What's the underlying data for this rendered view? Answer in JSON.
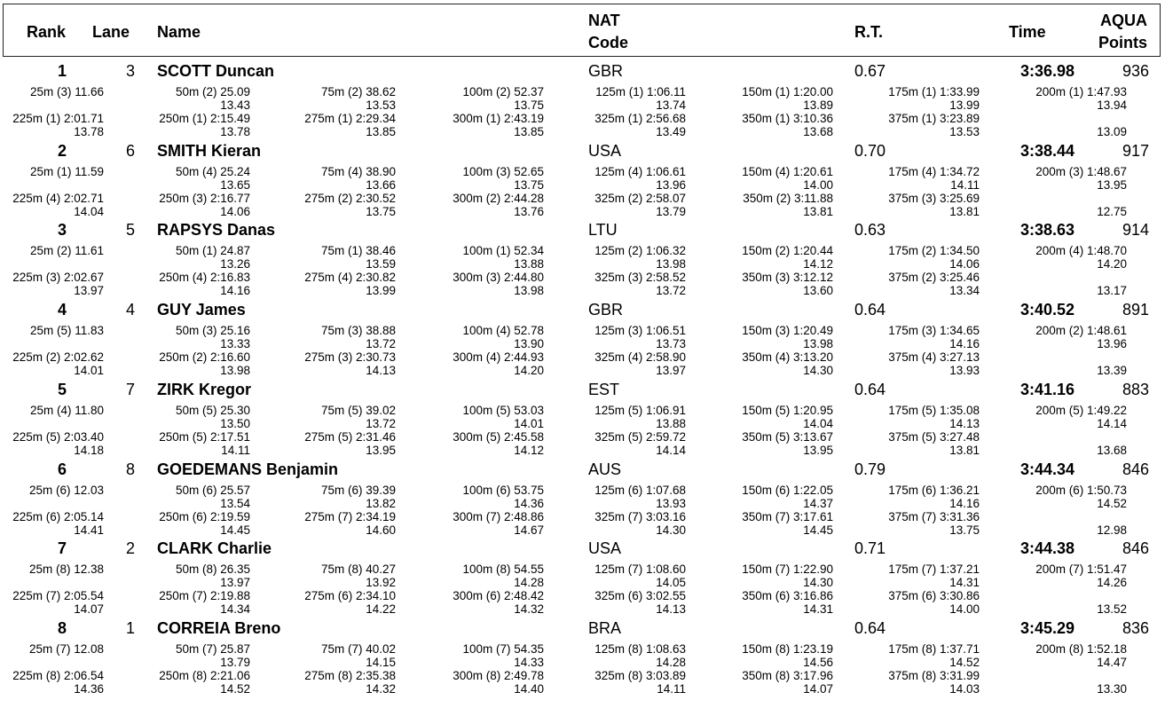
{
  "header": {
    "rank": "Rank",
    "lane": "Lane",
    "name": "Name",
    "nat_line1": "NAT",
    "nat_line2": "Code",
    "rt": "R.T.",
    "time": "Time",
    "points_line1": "AQUA",
    "points_line2": "Points"
  },
  "results": [
    {
      "rank": "1",
      "lane": "3",
      "name": "SCOTT Duncan",
      "nat": "GBR",
      "rt": "0.67",
      "time": "3:36.98",
      "points": "936",
      "splits": [
        [
          "25m  (3) 11.66",
          ""
        ],
        [
          "50m  (2) 25.09",
          "13.43"
        ],
        [
          "75m  (2) 38.62",
          "13.53"
        ],
        [
          "100m  (2) 52.37",
          "13.75"
        ],
        [
          "125m  (1) 1:06.11",
          "13.74"
        ],
        [
          "150m  (1) 1:20.00",
          "13.89"
        ],
        [
          "175m  (1) 1:33.99",
          "13.99"
        ],
        [
          "200m  (1) 1:47.93",
          "13.94"
        ],
        [
          "225m  (1) 2:01.71",
          "13.78"
        ],
        [
          "250m  (1) 2:15.49",
          "13.78"
        ],
        [
          "275m  (1) 2:29.34",
          "13.85"
        ],
        [
          "300m  (1) 2:43.19",
          "13.85"
        ],
        [
          "325m  (1) 2:56.68",
          "13.49"
        ],
        [
          "350m  (1) 3:10.36",
          "13.68"
        ],
        [
          "375m  (1) 3:23.89",
          "13.53"
        ],
        [
          "",
          "13.09"
        ]
      ]
    },
    {
      "rank": "2",
      "lane": "6",
      "name": "SMITH Kieran",
      "nat": "USA",
      "rt": "0.70",
      "time": "3:38.44",
      "points": "917",
      "splits": [
        [
          "25m  (1) 11.59",
          ""
        ],
        [
          "50m  (4) 25.24",
          "13.65"
        ],
        [
          "75m  (4) 38.90",
          "13.66"
        ],
        [
          "100m  (3) 52.65",
          "13.75"
        ],
        [
          "125m  (4) 1:06.61",
          "13.96"
        ],
        [
          "150m  (4) 1:20.61",
          "14.00"
        ],
        [
          "175m  (4) 1:34.72",
          "14.11"
        ],
        [
          "200m  (3) 1:48.67",
          "13.95"
        ],
        [
          "225m  (4) 2:02.71",
          "14.04"
        ],
        [
          "250m  (3) 2:16.77",
          "14.06"
        ],
        [
          "275m  (2) 2:30.52",
          "13.75"
        ],
        [
          "300m  (2) 2:44.28",
          "13.76"
        ],
        [
          "325m  (2) 2:58.07",
          "13.79"
        ],
        [
          "350m  (2) 3:11.88",
          "13.81"
        ],
        [
          "375m  (3) 3:25.69",
          "13.81"
        ],
        [
          "",
          "12.75"
        ]
      ]
    },
    {
      "rank": "3",
      "lane": "5",
      "name": "RAPSYS Danas",
      "nat": "LTU",
      "rt": "0.63",
      "time": "3:38.63",
      "points": "914",
      "splits": [
        [
          "25m  (2) 11.61",
          ""
        ],
        [
          "50m  (1) 24.87",
          "13.26"
        ],
        [
          "75m  (1) 38.46",
          "13.59"
        ],
        [
          "100m  (1) 52.34",
          "13.88"
        ],
        [
          "125m  (2) 1:06.32",
          "13.98"
        ],
        [
          "150m  (2) 1:20.44",
          "14.12"
        ],
        [
          "175m  (2) 1:34.50",
          "14.06"
        ],
        [
          "200m  (4) 1:48.70",
          "14.20"
        ],
        [
          "225m  (3) 2:02.67",
          "13.97"
        ],
        [
          "250m  (4) 2:16.83",
          "14.16"
        ],
        [
          "275m  (4) 2:30.82",
          "13.99"
        ],
        [
          "300m  (3) 2:44.80",
          "13.98"
        ],
        [
          "325m  (3) 2:58.52",
          "13.72"
        ],
        [
          "350m  (3) 3:12.12",
          "13.60"
        ],
        [
          "375m  (2) 3:25.46",
          "13.34"
        ],
        [
          "",
          "13.17"
        ]
      ]
    },
    {
      "rank": "4",
      "lane": "4",
      "name": "GUY James",
      "nat": "GBR",
      "rt": "0.64",
      "time": "3:40.52",
      "points": "891",
      "splits": [
        [
          "25m  (5) 11.83",
          ""
        ],
        [
          "50m  (3) 25.16",
          "13.33"
        ],
        [
          "75m  (3) 38.88",
          "13.72"
        ],
        [
          "100m  (4) 52.78",
          "13.90"
        ],
        [
          "125m  (3) 1:06.51",
          "13.73"
        ],
        [
          "150m  (3) 1:20.49",
          "13.98"
        ],
        [
          "175m  (3) 1:34.65",
          "14.16"
        ],
        [
          "200m  (2) 1:48.61",
          "13.96"
        ],
        [
          "225m  (2) 2:02.62",
          "14.01"
        ],
        [
          "250m  (2) 2:16.60",
          "13.98"
        ],
        [
          "275m  (3) 2:30.73",
          "14.13"
        ],
        [
          "300m  (4) 2:44.93",
          "14.20"
        ],
        [
          "325m  (4) 2:58.90",
          "13.97"
        ],
        [
          "350m  (4) 3:13.20",
          "14.30"
        ],
        [
          "375m  (4) 3:27.13",
          "13.93"
        ],
        [
          "",
          "13.39"
        ]
      ]
    },
    {
      "rank": "5",
      "lane": "7",
      "name": "ZIRK Kregor",
      "nat": "EST",
      "rt": "0.64",
      "time": "3:41.16",
      "points": "883",
      "splits": [
        [
          "25m  (4) 11.80",
          ""
        ],
        [
          "50m  (5) 25.30",
          "13.50"
        ],
        [
          "75m  (5) 39.02",
          "13.72"
        ],
        [
          "100m  (5) 53.03",
          "14.01"
        ],
        [
          "125m  (5) 1:06.91",
          "13.88"
        ],
        [
          "150m  (5) 1:20.95",
          "14.04"
        ],
        [
          "175m  (5) 1:35.08",
          "14.13"
        ],
        [
          "200m  (5) 1:49.22",
          "14.14"
        ],
        [
          "225m  (5) 2:03.40",
          "14.18"
        ],
        [
          "250m  (5) 2:17.51",
          "14.11"
        ],
        [
          "275m  (5) 2:31.46",
          "13.95"
        ],
        [
          "300m  (5) 2:45.58",
          "14.12"
        ],
        [
          "325m  (5) 2:59.72",
          "14.14"
        ],
        [
          "350m  (5) 3:13.67",
          "13.95"
        ],
        [
          "375m  (5) 3:27.48",
          "13.81"
        ],
        [
          "",
          "13.68"
        ]
      ]
    },
    {
      "rank": "6",
      "lane": "8",
      "name": "GOEDEMANS Benjamin",
      "nat": "AUS",
      "rt": "0.79",
      "time": "3:44.34",
      "points": "846",
      "splits": [
        [
          "25m  (6) 12.03",
          ""
        ],
        [
          "50m  (6) 25.57",
          "13.54"
        ],
        [
          "75m  (6) 39.39",
          "13.82"
        ],
        [
          "100m  (6) 53.75",
          "14.36"
        ],
        [
          "125m  (6) 1:07.68",
          "13.93"
        ],
        [
          "150m  (6) 1:22.05",
          "14.37"
        ],
        [
          "175m  (6) 1:36.21",
          "14.16"
        ],
        [
          "200m  (6) 1:50.73",
          "14.52"
        ],
        [
          "225m  (6) 2:05.14",
          "14.41"
        ],
        [
          "250m  (6) 2:19.59",
          "14.45"
        ],
        [
          "275m  (7) 2:34.19",
          "14.60"
        ],
        [
          "300m  (7) 2:48.86",
          "14.67"
        ],
        [
          "325m  (7) 3:03.16",
          "14.30"
        ],
        [
          "350m  (7) 3:17.61",
          "14.45"
        ],
        [
          "375m  (7) 3:31.36",
          "13.75"
        ],
        [
          "",
          "12.98"
        ]
      ]
    },
    {
      "rank": "7",
      "lane": "2",
      "name": "CLARK Charlie",
      "nat": "USA",
      "rt": "0.71",
      "time": "3:44.38",
      "points": "846",
      "splits": [
        [
          "25m  (8) 12.38",
          ""
        ],
        [
          "50m  (8) 26.35",
          "13.97"
        ],
        [
          "75m  (8) 40.27",
          "13.92"
        ],
        [
          "100m  (8) 54.55",
          "14.28"
        ],
        [
          "125m  (7) 1:08.60",
          "14.05"
        ],
        [
          "150m  (7) 1:22.90",
          "14.30"
        ],
        [
          "175m  (7) 1:37.21",
          "14.31"
        ],
        [
          "200m  (7) 1:51.47",
          "14.26"
        ],
        [
          "225m  (7) 2:05.54",
          "14.07"
        ],
        [
          "250m  (7) 2:19.88",
          "14.34"
        ],
        [
          "275m  (6) 2:34.10",
          "14.22"
        ],
        [
          "300m  (6) 2:48.42",
          "14.32"
        ],
        [
          "325m  (6) 3:02.55",
          "14.13"
        ],
        [
          "350m  (6) 3:16.86",
          "14.31"
        ],
        [
          "375m  (6) 3:30.86",
          "14.00"
        ],
        [
          "",
          "13.52"
        ]
      ]
    },
    {
      "rank": "8",
      "lane": "1",
      "name": "CORREIA Breno",
      "nat": "BRA",
      "rt": "0.64",
      "time": "3:45.29",
      "points": "836",
      "splits": [
        [
          "25m  (7) 12.08",
          ""
        ],
        [
          "50m  (7) 25.87",
          "13.79"
        ],
        [
          "75m  (7) 40.02",
          "14.15"
        ],
        [
          "100m  (7) 54.35",
          "14.33"
        ],
        [
          "125m  (8) 1:08.63",
          "14.28"
        ],
        [
          "150m  (8) 1:23.19",
          "14.56"
        ],
        [
          "175m  (8) 1:37.71",
          "14.52"
        ],
        [
          "200m  (8) 1:52.18",
          "14.47"
        ],
        [
          "225m  (8) 2:06.54",
          "14.36"
        ],
        [
          "250m  (8) 2:21.06",
          "14.52"
        ],
        [
          "275m  (8) 2:35.38",
          "14.32"
        ],
        [
          "300m  (8) 2:49.78",
          "14.40"
        ],
        [
          "325m  (8) 3:03.89",
          "14.11"
        ],
        [
          "350m  (8) 3:17.96",
          "14.07"
        ],
        [
          "375m  (8) 3:31.99",
          "14.03"
        ],
        [
          "",
          "13.30"
        ]
      ]
    }
  ]
}
